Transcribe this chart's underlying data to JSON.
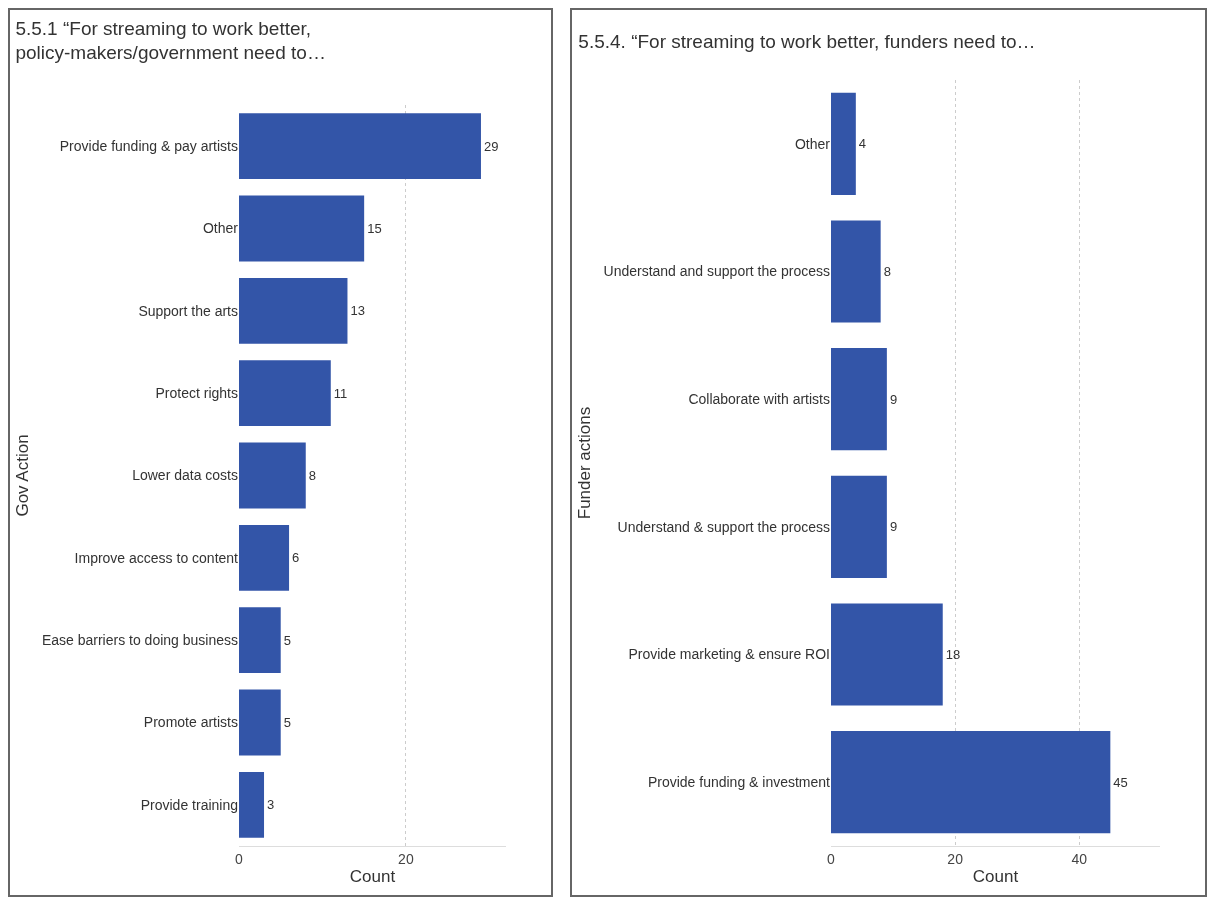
{
  "chart_data": [
    {
      "type": "bar",
      "orientation": "horizontal",
      "title": "5.5.1 “For streaming to work better,\npolicy-makers/government need to…",
      "ylabel": "Gov Action",
      "xlabel": "Count",
      "categories": [
        "Provide funding & pay artists",
        "Other",
        "Support the arts",
        "Protect rights",
        "Lower data costs",
        "Improve access to content",
        "Ease barriers to doing business",
        "Promote artists",
        "Provide training"
      ],
      "values": [
        29,
        15,
        13,
        11,
        8,
        6,
        5,
        5,
        3
      ],
      "color": "#3355a8",
      "xlim": [
        0,
        32
      ],
      "xticks": [
        0,
        20
      ],
      "grid": "x",
      "data_labels": true
    },
    {
      "type": "bar",
      "orientation": "horizontal",
      "title": "5.5.4. “For streaming to work better, funders need to…",
      "ylabel": "Funder actions",
      "xlabel": "Count",
      "categories": [
        "Other",
        "Understand and support the process",
        "Collaborate with artists",
        "Understand & support the process",
        "Provide marketing & ensure ROI",
        "Provide funding & investment"
      ],
      "values": [
        4,
        8,
        9,
        9,
        18,
        45
      ],
      "color": "#3355a8",
      "xlim": [
        0,
        53
      ],
      "xticks": [
        0,
        20,
        40
      ],
      "grid": "x",
      "data_labels": true
    }
  ]
}
